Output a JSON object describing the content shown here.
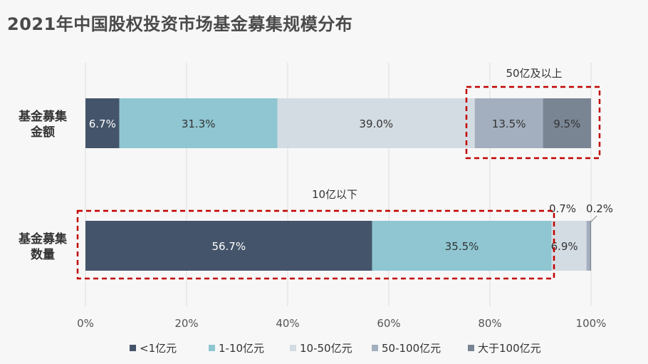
{
  "title": "2021年中国股权投资市场基金募集规模分布",
  "chart_data": {
    "type": "bar",
    "orientation": "horizontal",
    "stacked": true,
    "normalized": true,
    "title": "2021年中国股权投资市场基金募集规模分布",
    "categories": [
      "基金募集金额",
      "基金募集数量"
    ],
    "category_labels": [
      [
        "基金募集",
        "金额"
      ],
      [
        "基金募集",
        "数量"
      ]
    ],
    "series": [
      {
        "name": "<1亿元",
        "color": "#44546a",
        "values": [
          6.7,
          56.7
        ],
        "labels": [
          "6.7%",
          "56.7%"
        ]
      },
      {
        "name": "1-10亿元",
        "color": "#8fc6d2",
        "values": [
          31.3,
          35.5
        ],
        "labels": [
          "31.3%",
          "35.5%"
        ]
      },
      {
        "name": "10-50亿元",
        "color": "#d4dce3",
        "values": [
          39.0,
          6.9
        ],
        "labels": [
          "39.0%",
          "6.9%"
        ]
      },
      {
        "name": "50-100亿元",
        "color": "#a3afbf",
        "values": [
          13.5,
          0.7
        ],
        "labels": [
          "13.5%",
          "0.7%"
        ]
      },
      {
        "name": "大于100亿元",
        "color": "#7a8594",
        "values": [
          9.5,
          0.2
        ],
        "labels": [
          "9.5%",
          "0.2%"
        ]
      }
    ],
    "xlim": [
      0,
      100
    ],
    "xticks": [
      "0%",
      "20%",
      "40%",
      "60%",
      "80%",
      "100%"
    ],
    "grid": true,
    "legend_position": "bottom",
    "annotations": [
      {
        "text": "50亿及以上",
        "bar": 0,
        "from": 76.99,
        "to": 100
      },
      {
        "text": "10亿以下",
        "bar": 1,
        "from": 0,
        "to": 92.2
      }
    ]
  }
}
